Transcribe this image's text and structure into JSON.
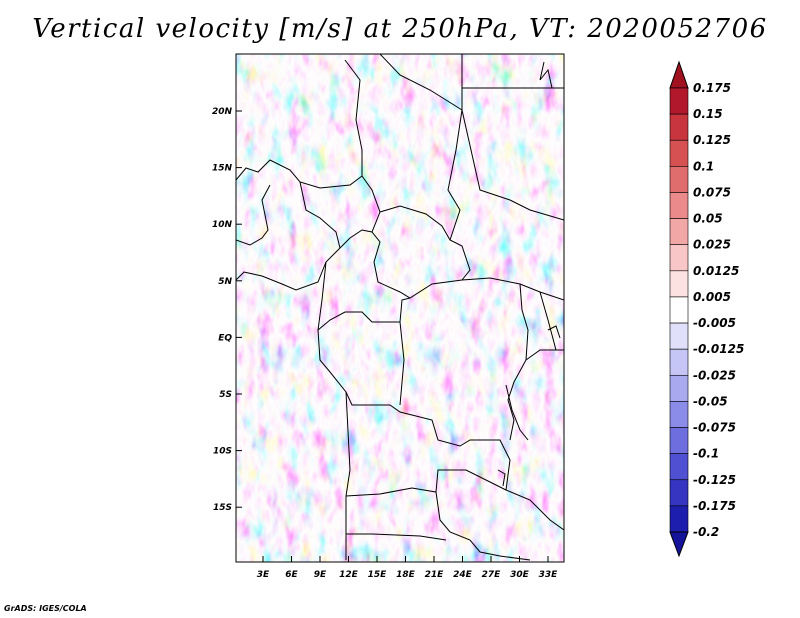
{
  "title": "Vertical velocity [m/s] at 250hPa, VT: 2020052706",
  "credit": "GrADS: IGES/COLA",
  "map": {
    "lat_labels": [
      "20N",
      "15N",
      "10N",
      "5N",
      "EQ",
      "5S",
      "10S",
      "15S"
    ],
    "lon_labels": [
      "3E",
      "6E",
      "9E",
      "12E",
      "15E",
      "18E",
      "21E",
      "24E",
      "27E",
      "30E",
      "33E"
    ]
  },
  "colorbar": {
    "labels": [
      "0.175",
      "0.15",
      "0.125",
      "0.1",
      "0.075",
      "0.05",
      "0.025",
      "0.0125",
      "0.005",
      "-0.005",
      "-0.0125",
      "-0.025",
      "-0.05",
      "-0.075",
      "-0.1",
      "-0.125",
      "-0.175",
      "-0.2"
    ],
    "colors": [
      "#b2182b",
      "#c8353e",
      "#d65252",
      "#e06d6d",
      "#ea8a8a",
      "#f2a7a7",
      "#f8c6c6",
      "#fde2e2",
      "#ffffff",
      "#e0e0fb",
      "#c6c6f6",
      "#a9a9f0",
      "#8b8be8",
      "#6e6ede",
      "#5050d2",
      "#3535c2",
      "#1e1eae"
    ],
    "top_cap_color": "#a0121f",
    "bottom_cap_color": "#14149a"
  }
}
